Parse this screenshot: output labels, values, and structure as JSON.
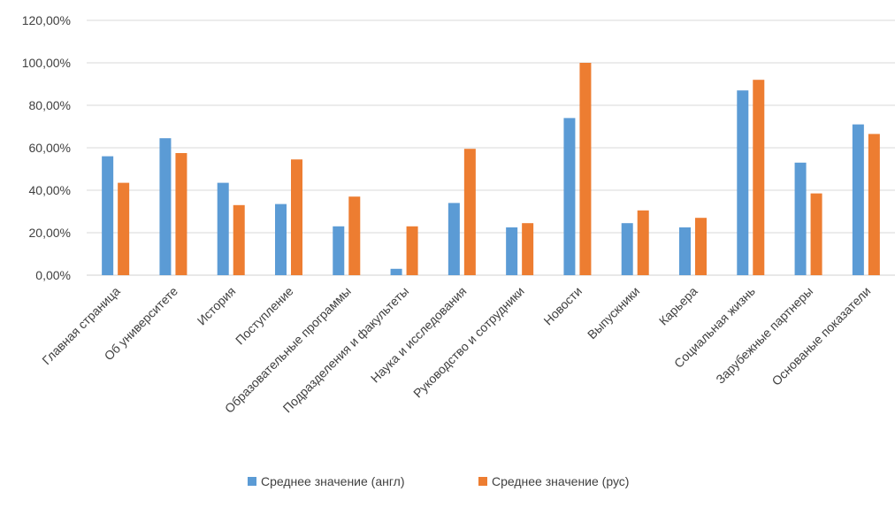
{
  "chart_data": {
    "type": "bar",
    "title": "",
    "xlabel": "",
    "ylabel": "",
    "ylim": [
      0,
      1.2
    ],
    "yticks": [
      "0,00%",
      "20,00%",
      "40,00%",
      "60,00%",
      "80,00%",
      "100,00%",
      "120,00%"
    ],
    "grid": true,
    "legend_position": "bottom",
    "categories": [
      "Главная страница",
      "Об университете",
      "История",
      "Поступление",
      "Образовательные программы",
      "Подразделения и факультеты",
      "Наука и исследования",
      "Руководство и сотрудники",
      "Новости",
      "Выпускники",
      "Карьера",
      "Социальная жизнь",
      "Зарубежные партнеры",
      "Основаные показатели"
    ],
    "series": [
      {
        "name": "Среднее значение (англ)",
        "color": "#5B9BD5",
        "values": [
          0.56,
          0.645,
          0.435,
          0.335,
          0.23,
          0.03,
          0.34,
          0.225,
          0.74,
          0.245,
          0.225,
          0.87,
          0.53,
          0.71
        ]
      },
      {
        "name": "Среднее значение (рус)",
        "color": "#ED7D31",
        "values": [
          0.435,
          0.575,
          0.33,
          0.545,
          0.37,
          0.23,
          0.595,
          0.245,
          1.0,
          0.305,
          0.27,
          0.92,
          0.385,
          0.665
        ]
      }
    ]
  }
}
